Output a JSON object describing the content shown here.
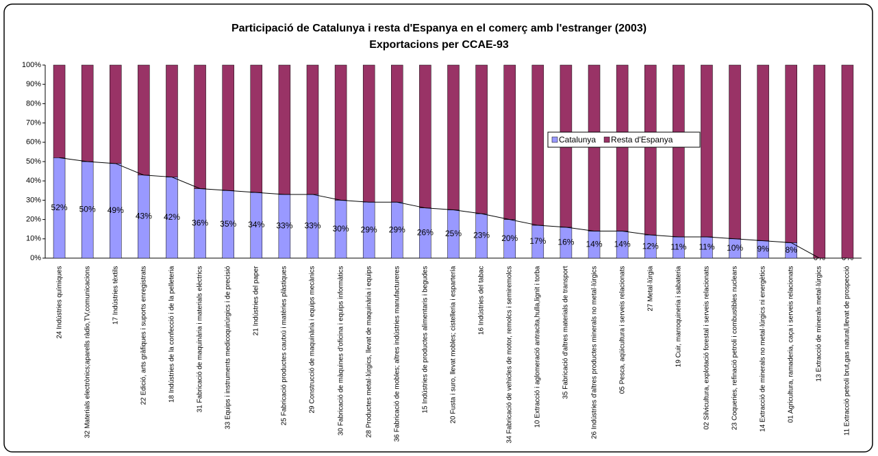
{
  "chart_data": {
    "type": "stacked_bar_percent",
    "title": "Participació de Catalunya i resta d'Espanya en el comerç amb l'estranger (2003)",
    "subtitle": "Exportacions per CCAE-93",
    "categories": [
      "24 Indústries químiques",
      "32 Materials electrònics;aparells ràdio,TV,comunicacions",
      "17 Indústries tèxtils",
      "22 Edició, arts gràfiques i suports enregistrats",
      "18 Indústries de la confecció i de la pelleteria",
      "31 Fabricació de maquinària i materials elèctrics",
      "33 Equips i instruments medicoquirúrgics i de precisió",
      "21 Indústries del paper",
      "25 Fabricació productes cautxú i matèries plàstiques",
      "29 Construcció de maquinària i equips mecànics",
      "30 Fabricació de màquines d'oficina i equips informàtics",
      "28 Productes metal·lúrgics, llevat de maquinària i equips",
      "36 Fabricació de mobles; altres indústries manufactureres",
      "15 Indústries de productes alimentaris i begudes",
      "20 Fusta i suro, llevat mobles; cistelleria i espartería",
      "16 Indústries del tabac",
      "34 Fabricació de vehicles de motor, remolcs i semiremolcs",
      "10 Extracció i aglomeració antracita,hulla,lignit i torba",
      "35 Fabricació d'altres materials de transport",
      "26 Indústries d'altres productes minerals no metal·lúrgics",
      "05 Pesca, aqüicultura i serveis relacionats",
      "27 Metal·lúrgia",
      "19 Cuir, marroquineria i sabateria",
      "02 Silvicultura, explotació forestal i serveis relacionats",
      "23 Coqueries, refinació petroli i combustibles nuclears",
      "14 Extracció de minerals no metal·lúrgics ni energètics",
      "01 Agricultura, ramaderia, caça i serveis relacionats",
      "13 Extracció de minerals metal·lúrgics",
      "11 Extracció petroli brut,gas natural,llevat de prospecció"
    ],
    "series": [
      {
        "name": "Catalunya",
        "color": "#9999ff",
        "values": [
          52,
          50,
          49,
          43,
          42,
          36,
          35,
          34,
          33,
          33,
          30,
          29,
          29,
          26,
          25,
          23,
          20,
          17,
          16,
          14,
          14,
          12,
          11,
          11,
          10,
          9,
          8,
          0,
          0
        ],
        "value_labels": [
          "52%",
          "50%",
          "49%",
          "43%",
          "42%",
          "36%",
          "35%",
          "34%",
          "33%",
          "33%",
          "30%",
          "29%",
          "29%",
          "26%",
          "25%",
          "23%",
          "20%",
          "17%",
          "16%",
          "14%",
          "14%",
          "12%",
          "11%",
          "11%",
          "10%",
          "9%",
          "8%",
          "0%",
          "0%"
        ]
      },
      {
        "name": "Resta d'Espanya",
        "color": "#993366",
        "values": [
          48,
          50,
          51,
          57,
          58,
          64,
          65,
          66,
          67,
          67,
          70,
          71,
          71,
          74,
          75,
          77,
          80,
          83,
          84,
          86,
          86,
          88,
          89,
          89,
          90,
          91,
          92,
          100,
          100
        ]
      }
    ],
    "ylim": [
      0,
      100
    ],
    "yticks": [
      {
        "value": 0,
        "label": "0%"
      },
      {
        "value": 10,
        "label": "10%"
      },
      {
        "value": 20,
        "label": "20%"
      },
      {
        "value": 30,
        "label": "30%"
      },
      {
        "value": 40,
        "label": "40%"
      },
      {
        "value": 50,
        "label": "50%"
      },
      {
        "value": 60,
        "label": "60%"
      },
      {
        "value": 70,
        "label": "70%"
      },
      {
        "value": 80,
        "label": "80%"
      },
      {
        "value": 90,
        "label": "90%"
      },
      {
        "value": 100,
        "label": "100%"
      }
    ],
    "legend": "right"
  }
}
